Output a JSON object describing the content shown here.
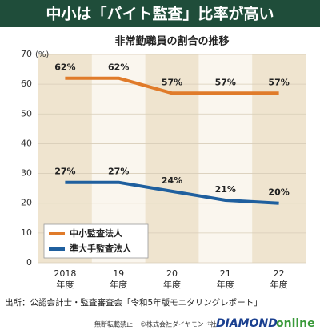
{
  "chart_data": {
    "type": "line",
    "title": "中小は「バイト監査」比率が高い",
    "subtitle": "非常勤職員の割合の推移",
    "y_label": "(%)",
    "categories": [
      "2018",
      "19",
      "20",
      "21",
      "22"
    ],
    "category_suffix": "年度",
    "series": [
      {
        "name": "中小監査法人",
        "color": "#e07b2a",
        "values": [
          62,
          62,
          57,
          57,
          57
        ],
        "value_labels": [
          "62%",
          "62%",
          "57%",
          "57%",
          "57%"
        ]
      },
      {
        "name": "準大手監査法人",
        "color": "#1f5f9e",
        "values": [
          27,
          27,
          24,
          21,
          20
        ],
        "value_labels": [
          "27%",
          "27%",
          "24%",
          "21%",
          "20%"
        ]
      }
    ],
    "ylim": [
      0,
      70
    ],
    "yticks": [
      0,
      10,
      20,
      30,
      40,
      50,
      60,
      70
    ],
    "grid": true,
    "legend": "lower-left",
    "source": "出所：公認会計士・監査審査会「令和5年版モニタリングレポート」",
    "footer": {
      "notice": "無断転載禁止",
      "copyright": "©株式会社ダイヤモンド社",
      "logo_main": "DIAMOND",
      "logo_sub": "online"
    }
  }
}
